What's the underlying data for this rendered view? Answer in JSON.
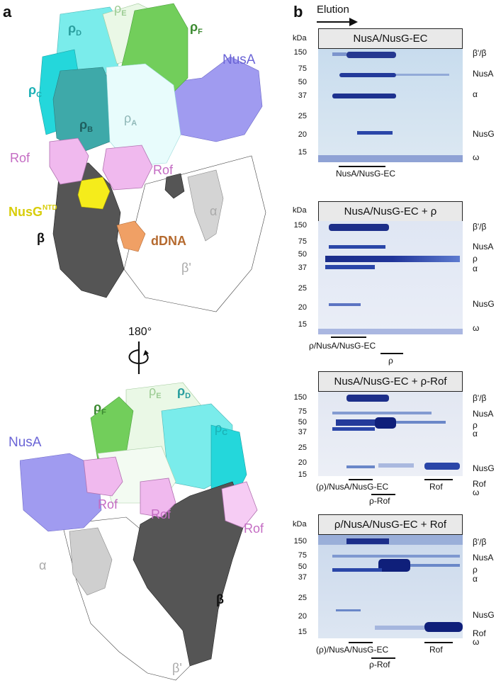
{
  "panel_a": {
    "letter": "a",
    "top_labels": {
      "rho_e": {
        "main": "ρ",
        "sub": "E"
      },
      "rho_d": {
        "main": "ρ",
        "sub": "D"
      },
      "rho_f": {
        "main": "ρ",
        "sub": "F"
      },
      "nusa": "NusA",
      "rho_c": {
        "main": "ρ",
        "sub": "C"
      },
      "rho_b": {
        "main": "ρ",
        "sub": "B"
      },
      "rho_a": {
        "main": "ρ",
        "sub": "A"
      },
      "rof_left": "Rof",
      "rof_center": "Rof",
      "nusg_ntd": {
        "main": "NusG",
        "sup": "NTD"
      },
      "alpha": "α",
      "beta": "β",
      "ddna": "dDNA",
      "beta_prime": "β'"
    },
    "rotation": "180°",
    "bottom_labels": {
      "rho_e": {
        "main": "ρ",
        "sub": "E"
      },
      "rho_d": {
        "main": "ρ",
        "sub": "D"
      },
      "rho_f": {
        "main": "ρ",
        "sub": "F"
      },
      "rho_c": {
        "main": "ρ",
        "sub": "C"
      },
      "nusa": "NusA",
      "rof_1": "Rof",
      "rof_2": "Rof",
      "rof_3": "Rof",
      "alpha": "α",
      "beta": "β",
      "beta_prime": "β'"
    },
    "colors": {
      "rho_a": "#e6fbfb",
      "rho_b": "#3aa6a6",
      "rho_c": "#22d4d8",
      "rho_d": "#6de8e6",
      "rho_e": "#e7f7e3",
      "rho_f": "#6fcc57",
      "nusa": "#9c97ee",
      "rof": "#efb6ec",
      "nusg": "#f3ea1b",
      "beta": "#555555",
      "beta_prime": "#ffffff",
      "alpha": "#cfcfcf",
      "ddna": "#f0a065"
    }
  },
  "panel_b": {
    "letter": "b",
    "elution_label": "Elution",
    "kda_label": "kDa",
    "mw_markers": [
      "150",
      "75",
      "50",
      "37",
      "25",
      "20",
      "15"
    ],
    "gels": [
      {
        "title": "NusA/NusG-EC",
        "bands": [
          "β'/β",
          "NusA",
          "α",
          "NusG",
          "ω"
        ],
        "fractions": [
          {
            "label": "NusA/NusG-EC"
          }
        ]
      },
      {
        "title": "NusA/NusG-EC + ρ",
        "bands": [
          "β'/β",
          "NusA",
          "ρ",
          "α",
          "NusG",
          "ω"
        ],
        "fractions": [
          {
            "label": "ρ/NusA/NusG-EC"
          },
          {
            "label": "ρ"
          }
        ]
      },
      {
        "title": "NusA/NusG-EC + ρ-Rof",
        "bands": [
          "β'/β",
          "NusA",
          "ρ",
          "α",
          "NusG",
          "Rof",
          "ω"
        ],
        "fractions": [
          {
            "label": "(ρ)/NusA/NusG-EC"
          },
          {
            "label": "ρ-Rof"
          },
          {
            "label": "Rof"
          }
        ]
      },
      {
        "title": "ρ/NusA/NusG-EC + Rof",
        "bands": [
          "β'/β",
          "NusA",
          "ρ",
          "α",
          "NusG",
          "Rof",
          "ω"
        ],
        "fractions": [
          {
            "label": "(ρ)/NusA/NusG-EC"
          },
          {
            "label": "ρ-Rof"
          },
          {
            "label": "Rof"
          }
        ]
      }
    ]
  }
}
